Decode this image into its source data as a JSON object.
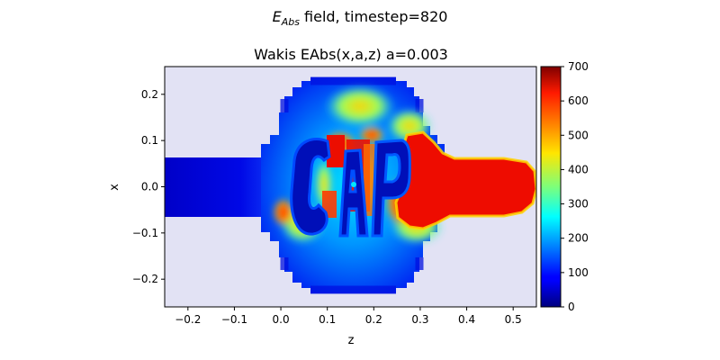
{
  "figure": {
    "suptitle_main": "E",
    "suptitle_sub": "Abs",
    "suptitle_rest": " field, timestep=820"
  },
  "chart_data": {
    "type": "heatmap",
    "title": "Wakis EAbs(x,a,z) a=0.003",
    "xlabel": "z",
    "ylabel": "x",
    "xlim": [
      -0.25,
      0.55
    ],
    "ylim": [
      -0.26,
      0.26
    ],
    "xticks": [
      -0.2,
      -0.1,
      0.0,
      0.1,
      0.2,
      0.3,
      0.4,
      0.5
    ],
    "xtick_labels": [
      "−0.2",
      "−0.1",
      "0.0",
      "0.1",
      "0.2",
      "0.3",
      "0.4",
      "0.5"
    ],
    "yticks": [
      -0.2,
      -0.1,
      0.0,
      0.1,
      0.2
    ],
    "ytick_labels": [
      "−0.2",
      "−0.1",
      "0.0",
      "0.1",
      "0.2"
    ],
    "colorbar": {
      "min": 0,
      "max": 700,
      "ticks": [
        0,
        100,
        200,
        300,
        400,
        500,
        600,
        700
      ],
      "tick_labels": [
        "0",
        "100",
        "200",
        "300",
        "400",
        "500",
        "600",
        "700"
      ],
      "colormap": "jet"
    },
    "background_color": "#e2e2f4",
    "geometry": {
      "beam_pipe_half_width": 0.065,
      "cavity_half_width": 0.235,
      "cavity_z_range": [
        0.0,
        0.29
      ]
    },
    "field_regions": [
      {
        "region": "left beam pipe",
        "value": 20
      },
      {
        "region": "right beam pipe",
        "value": 700
      },
      {
        "region": "cavity",
        "value": 150
      },
      {
        "region": "letters C, A, P",
        "value": 30
      }
    ]
  }
}
